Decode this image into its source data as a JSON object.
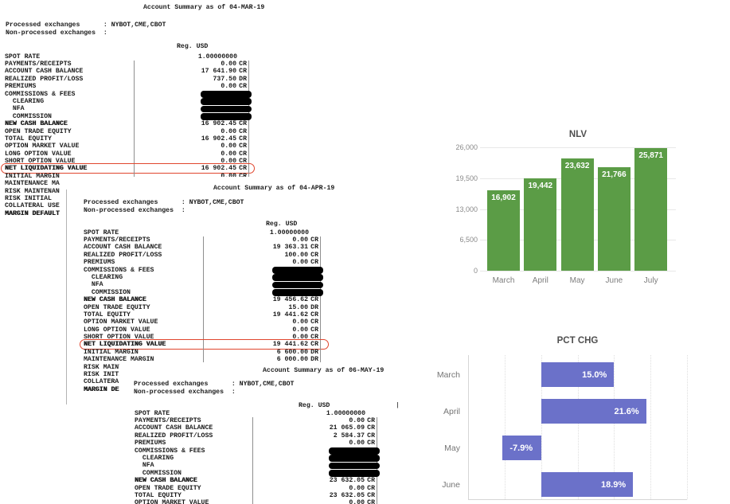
{
  "documents": [
    {
      "title": "Account Summary as of 04-MAR-19",
      "processed_line": "Processed exchanges      : NYBOT,CME,CBOT",
      "nonprocessed_line": "Non-processed exchanges  :",
      "column_header": "Reg. USD",
      "rows": [
        {
          "label": "SPOT RATE",
          "value": "1.00000000",
          "suffix": "",
          "rules": false
        },
        {
          "label": "PAYMENTS/RECEIPTS",
          "value": "0.00",
          "suffix": "CR",
          "rules": true
        },
        {
          "label": "ACCOUNT CASH BALANCE",
          "value": "17 641.90",
          "suffix": "CR",
          "rules": true
        },
        {
          "label": "REALIZED PROFIT/LOSS",
          "value": "737.50",
          "suffix": "DR",
          "rules": true
        },
        {
          "label": "PREMIUMS",
          "value": "0.00",
          "suffix": "CR",
          "rules": true
        },
        {
          "label": "COMMISSIONS & FEES",
          "redacted": true,
          "rules": true
        },
        {
          "label": "  CLEARING",
          "redacted": true,
          "rules": true
        },
        {
          "label": "  NFA",
          "redacted": true,
          "rules": true
        },
        {
          "label": "  COMMISSION",
          "redacted": true,
          "rules": true
        },
        {
          "label": "NEW CASH BALANCE",
          "value": "16 902.45",
          "suffix": "CR",
          "bold": true,
          "rules": true
        },
        {
          "label": "OPEN TRADE EQUITY",
          "value": "0.00",
          "suffix": "CR",
          "rules": true
        },
        {
          "label": "TOTAL EQUITY",
          "value": "16 902.45",
          "suffix": "CR",
          "rules": true
        },
        {
          "label": "OPTION MARKET VALUE",
          "value": "0.00",
          "suffix": "CR",
          "rules": true
        },
        {
          "label": "LONG OPTION VALUE",
          "value": "0.00",
          "suffix": "CR",
          "rules": true
        },
        {
          "label": "SHORT OPTION VALUE",
          "value": "0.00",
          "suffix": "CR",
          "rules": true
        },
        {
          "label": "NET LIQUIDATING VALUE",
          "value": "16 902.45",
          "suffix": "CR",
          "bold": true,
          "circled": true,
          "rules": true
        },
        {
          "label": "INITIAL MARGIN",
          "value": "0.00",
          "suffix": "CR",
          "rules": true
        },
        {
          "label": "MAINTENANCE MA",
          "value": "",
          "suffix": "",
          "rules": false
        },
        {
          "label": "RISK MAINTENAN",
          "value": "",
          "suffix": "",
          "rules": false
        },
        {
          "label": "RISK INITIAL",
          "value": "",
          "suffix": "",
          "rules": false
        },
        {
          "label": "COLLATERAL USE",
          "value": "",
          "suffix": "",
          "rules": false
        },
        {
          "label": "MARGIN DEFAULT",
          "value": "",
          "suffix": "",
          "bold": true,
          "rules": false
        }
      ]
    },
    {
      "title": "Account Summary as of 04-APR-19",
      "processed_line": "Processed exchanges      : NYBOT,CME,CBOT",
      "nonprocessed_line": "Non-processed exchanges  :",
      "column_header": "Reg. USD",
      "rows": [
        {
          "label": "SPOT RATE",
          "value": "1.00000000",
          "suffix": "",
          "rules": false
        },
        {
          "label": "PAYMENTS/RECEIPTS",
          "value": "0.00",
          "suffix": "CR",
          "rules": true
        },
        {
          "label": "ACCOUNT CASH BALANCE",
          "value": "19 363.31",
          "suffix": "CR",
          "rules": true
        },
        {
          "label": "REALIZED PROFIT/LOSS",
          "value": "100.00",
          "suffix": "CR",
          "rules": true
        },
        {
          "label": "PREMIUMS",
          "value": "0.00",
          "suffix": "CR",
          "rules": true
        },
        {
          "label": "COMMISSIONS & FEES",
          "redacted": true,
          "rules": true
        },
        {
          "label": "  CLEARING",
          "redacted": true,
          "rules": true
        },
        {
          "label": "  NFA",
          "redacted": true,
          "rules": true
        },
        {
          "label": "  COMMISSION",
          "redacted": true,
          "rules": true
        },
        {
          "label": "NEW CASH BALANCE",
          "value": "19 456.62",
          "suffix": "CR",
          "bold": true,
          "rules": true
        },
        {
          "label": "OPEN TRADE EQUITY",
          "value": "15.00",
          "suffix": "DR",
          "rules": true
        },
        {
          "label": "TOTAL EQUITY",
          "value": "19 441.62",
          "suffix": "CR",
          "rules": true
        },
        {
          "label": "OPTION MARKET VALUE",
          "value": "0.00",
          "suffix": "CR",
          "rules": true
        },
        {
          "label": "LONG OPTION VALUE",
          "value": "0.00",
          "suffix": "CR",
          "rules": true
        },
        {
          "label": "SHORT OPTION VALUE",
          "value": "0.00",
          "suffix": "CR",
          "rules": true
        },
        {
          "label": "NET LIQUIDATING VALUE",
          "value": "19 441.62",
          "suffix": "CR",
          "bold": true,
          "circled": true,
          "rules": true
        },
        {
          "label": "INITIAL MARGIN",
          "value": "6 600.00",
          "suffix": "DR",
          "rules": true
        },
        {
          "label": "MAINTENANCE MARGIN",
          "value": "6 000.00",
          "suffix": "DR",
          "rules": true
        },
        {
          "label": "RISK MAINTENAN",
          "value": "",
          "suffix": "",
          "rules": false
        },
        {
          "label": "RISK INITIAL",
          "value": "",
          "suffix": "",
          "rules": false
        },
        {
          "label": "COLLATERAL USE",
          "value": "",
          "suffix": "",
          "rules": false
        },
        {
          "label": "MARGIN DEFAULT",
          "value": "",
          "suffix": "",
          "bold": true,
          "rules": false
        }
      ]
    },
    {
      "title": "Account Summary as of 06-MAY-19",
      "processed_line": "Processed exchanges      : NYBOT,CME,CBOT",
      "nonprocessed_line": "Non-processed exchanges  :",
      "column_header": "Reg. USD",
      "column_marker": "|",
      "rows": [
        {
          "label": "SPOT RATE",
          "value": "1.00000000",
          "suffix": "",
          "rules": false
        },
        {
          "label": "PAYMENTS/RECEIPTS",
          "value": "0.00",
          "suffix": "CR",
          "rules": true
        },
        {
          "label": "ACCOUNT CASH BALANCE",
          "value": "21 065.09",
          "suffix": "CR",
          "rules": true
        },
        {
          "label": "REALIZED PROFIT/LOSS",
          "value": "2 584.37",
          "suffix": "CR",
          "rules": true
        },
        {
          "label": "PREMIUMS",
          "value": "0.00",
          "suffix": "CR",
          "rules": true
        },
        {
          "label": "COMMISSIONS & FEES",
          "redacted": true,
          "rules": true
        },
        {
          "label": "  CLEARING",
          "redacted": true,
          "rules": true
        },
        {
          "label": "  NFA",
          "redacted": true,
          "rules": true
        },
        {
          "label": "  COMMISSION",
          "redacted": true,
          "rules": true
        },
        {
          "label": "NEW CASH BALANCE",
          "value": "23 632.05",
          "suffix": "CR",
          "bold": true,
          "rules": true
        },
        {
          "label": "OPEN TRADE EQUITY",
          "value": "0.00",
          "suffix": "CR",
          "rules": true
        },
        {
          "label": "TOTAL EQUITY",
          "value": "23 632.05",
          "suffix": "CR",
          "rules": true
        },
        {
          "label": "OPTION MARKET VALUE",
          "value": "0.00",
          "suffix": "CR",
          "rules": true
        }
      ]
    }
  ],
  "chart_data": [
    {
      "type": "bar",
      "title": "NLV",
      "categories": [
        "March",
        "April",
        "May",
        "June",
        "July"
      ],
      "values": [
        16902,
        19442,
        23632,
        21766,
        25871
      ],
      "bar_labels": [
        "16,902",
        "19,442",
        "23,632",
        "21,766",
        "25,871"
      ],
      "yticks": [
        0,
        6500,
        13000,
        19500,
        26000
      ],
      "ytick_labels": [
        "0",
        "6,500",
        "13,000",
        "19,500",
        "26,000"
      ],
      "ylim": [
        0,
        26000
      ],
      "bar_color": "#5b9c46",
      "grid": true,
      "legend": false
    },
    {
      "type": "bar-horizontal",
      "title": "PCT CHG",
      "categories": [
        "March",
        "April",
        "May",
        "June"
      ],
      "values": [
        15.0,
        21.6,
        -7.9,
        18.9
      ],
      "bar_labels": [
        "15.0%",
        "21.6%",
        "-7.9%",
        "18.9%"
      ],
      "xlim": [
        -15,
        30
      ],
      "grid_values": [
        -15,
        -7.5,
        0,
        7.5,
        15,
        22.5,
        30
      ],
      "bar_color": "#6b71c9",
      "grid": true,
      "legend": false
    }
  ]
}
